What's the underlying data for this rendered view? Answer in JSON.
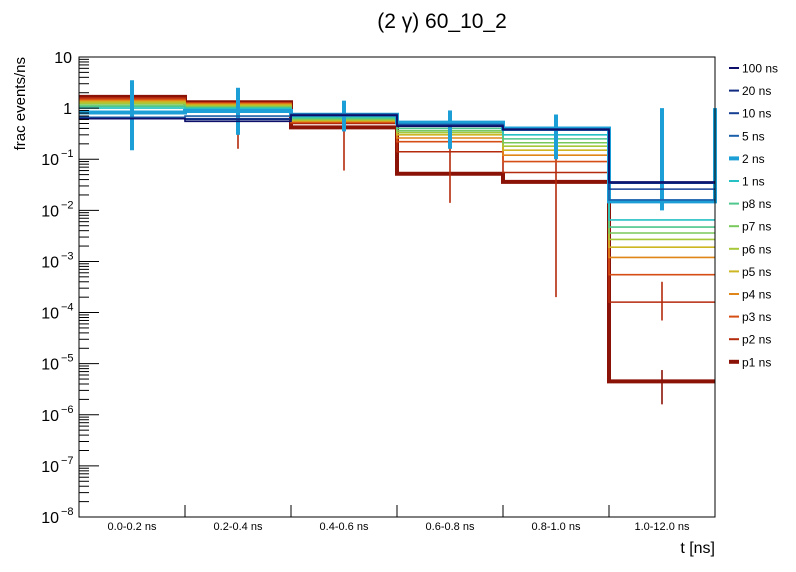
{
  "chart_data": {
    "type": "step",
    "title": "(2 γ) 60_10_2",
    "xlabel": "t [ns]",
    "ylabel": "frac events/ns",
    "y_scale": "log",
    "ylim": [
      1e-08,
      10
    ],
    "y_ticks": [
      {
        "value": 1e-08,
        "base": "10",
        "exp": "−8"
      },
      {
        "value": 1e-07,
        "base": "10",
        "exp": "−7"
      },
      {
        "value": 1e-06,
        "base": "10",
        "exp": "−6"
      },
      {
        "value": 1e-05,
        "base": "10",
        "exp": "−5"
      },
      {
        "value": 0.0001,
        "base": "10",
        "exp": "−4"
      },
      {
        "value": 0.001,
        "base": "10",
        "exp": "−3"
      },
      {
        "value": 0.01,
        "base": "10",
        "exp": "−2"
      },
      {
        "value": 0.1,
        "base": "10",
        "exp": "−1"
      },
      {
        "value": 1,
        "base": "1",
        "exp": ""
      },
      {
        "value": 10,
        "base": "10",
        "exp": ""
      }
    ],
    "categories": [
      "0.0-0.2 ns",
      "0.2-0.4 ns",
      "0.4-0.6 ns",
      "0.6-0.8 ns",
      "0.8-1.0 ns",
      "1.0-12.0 ns"
    ],
    "legend_position": "right",
    "series": [
      {
        "name": "100 ns",
        "color": "#0d0f6b",
        "values": [
          0.62,
          0.55,
          0.72,
          0.44,
          0.38,
          0.036
        ],
        "errors": [],
        "bold": false
      },
      {
        "name": "20 ns",
        "color": "#0f2a80",
        "values": [
          0.62,
          0.6,
          0.73,
          0.45,
          0.39,
          0.034
        ],
        "errors": [],
        "bold": false
      },
      {
        "name": "10 ns",
        "color": "#163f92",
        "values": [
          0.63,
          0.62,
          0.74,
          0.46,
          0.38,
          0.026
        ],
        "errors": [],
        "bold": false
      },
      {
        "name": "5 ns",
        "color": "#1b5fa8",
        "values": [
          0.66,
          0.7,
          0.76,
          0.48,
          0.37,
          0.016
        ],
        "errors": [],
        "bold": false
      },
      {
        "name": "2 ns",
        "color": "#1c9fd6",
        "values": [
          0.82,
          0.88,
          0.74,
          0.52,
          0.4,
          0.015
        ],
        "errors": [
          [
            0.15,
            3.5
          ],
          [
            0.3,
            2.5
          ],
          [
            0.35,
            1.4
          ],
          [
            0.16,
            0.9
          ],
          [
            0.1,
            0.75
          ],
          [
            0.01,
            1.0
          ]
        ],
        "bold": true
      },
      {
        "name": "1 ns",
        "color": "#26c1c4",
        "values": [
          1.0,
          0.98,
          0.68,
          0.45,
          0.3,
          0.0065
        ],
        "errors": [],
        "bold": false
      },
      {
        "name": "p8 ns",
        "color": "#4dc78c",
        "values": [
          1.08,
          1.02,
          0.64,
          0.4,
          0.25,
          0.0047
        ],
        "errors": [],
        "bold": false
      },
      {
        "name": "p7 ns",
        "color": "#78c85c",
        "values": [
          1.15,
          1.05,
          0.61,
          0.36,
          0.21,
          0.0036
        ],
        "errors": [],
        "bold": false
      },
      {
        "name": "p6 ns",
        "color": "#a6c838",
        "values": [
          1.24,
          1.1,
          0.59,
          0.33,
          0.18,
          0.0027
        ],
        "errors": [],
        "bold": false
      },
      {
        "name": "p5 ns",
        "color": "#cdb524",
        "values": [
          1.32,
          1.15,
          0.57,
          0.3,
          0.15,
          0.0019
        ],
        "errors": [],
        "bold": false
      },
      {
        "name": "p4 ns",
        "color": "#e08518",
        "values": [
          1.4,
          1.2,
          0.55,
          0.26,
          0.12,
          0.0012
        ],
        "errors": [],
        "bold": false
      },
      {
        "name": "p3 ns",
        "color": "#d64e14",
        "values": [
          1.48,
          1.24,
          0.53,
          0.22,
          0.09,
          0.00055
        ],
        "errors": [],
        "bold": false
      },
      {
        "name": "p2 ns",
        "color": "#b42a0c",
        "values": [
          1.58,
          1.27,
          0.5,
          0.14,
          0.055,
          0.00016
        ],
        "errors": [
          [
            0.2,
            2.9
          ],
          [
            0.16,
            2.1
          ],
          [
            0.06,
            1.1
          ],
          [
            0.014,
            0.8
          ],
          [
            0.0002,
            0.6
          ],
          [
            7e-05,
            0.0004
          ]
        ],
        "bold": false
      },
      {
        "name": "p1 ns",
        "color": "#8a1206",
        "values": [
          1.66,
          1.3,
          0.42,
          0.052,
          0.036,
          4.5e-06
        ],
        "errors": [],
        "bold": true
      }
    ],
    "extra_errors": [
      {
        "color": "#8a1206",
        "x_index": 5,
        "value": 4.5e-06,
        "low": 1.6e-06,
        "high": 7.5e-06
      }
    ]
  }
}
